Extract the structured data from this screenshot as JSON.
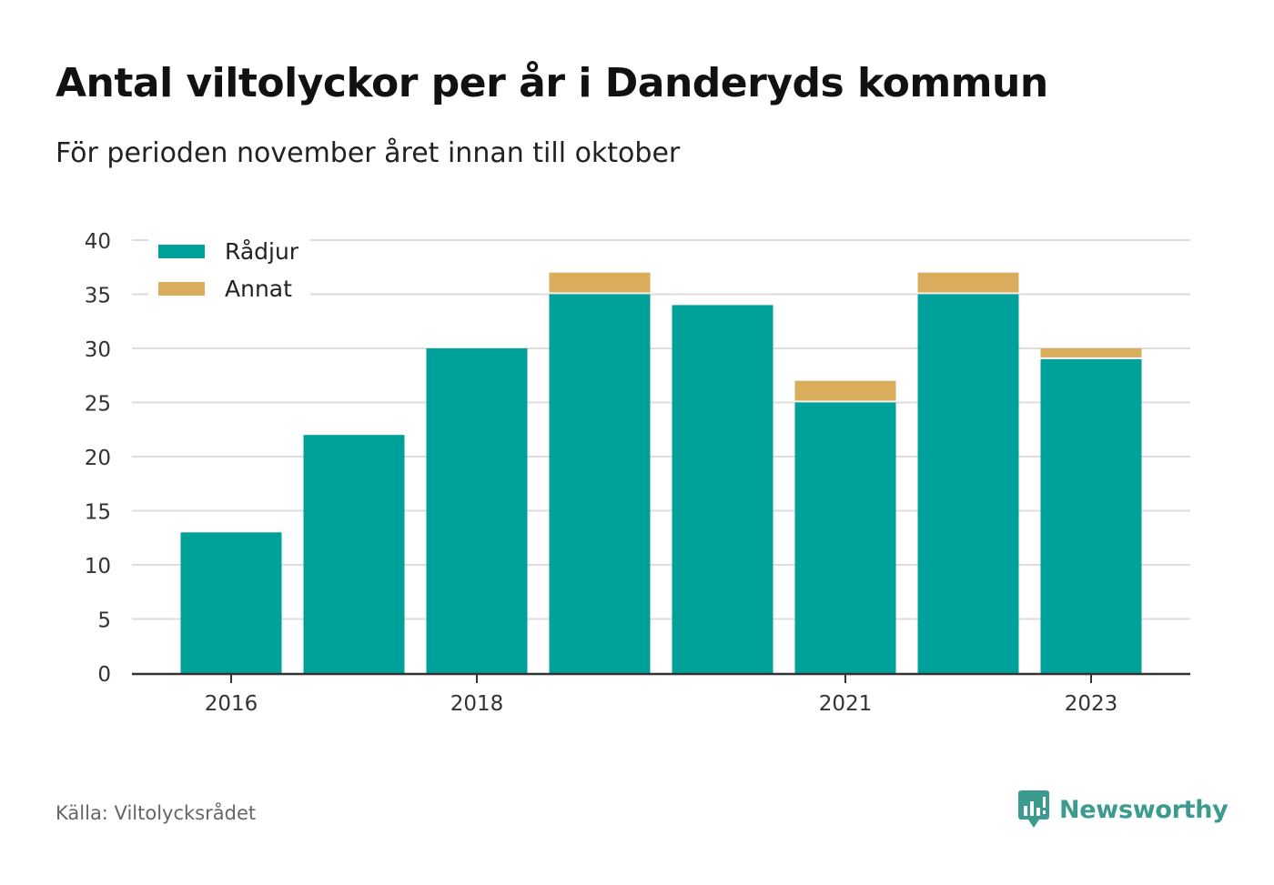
{
  "header": {
    "title": "Antal viltolyckor per år i Danderyds kommun",
    "subtitle": "För perioden november året innan till oktober"
  },
  "footer": {
    "source": "Källa: Viltolycksrådet",
    "brand": "Newsworthy"
  },
  "colors": {
    "radjur": "#00a19a",
    "annat": "#d9ad5c",
    "grid": "#dddddd",
    "axis": "#333333",
    "brand": "#3a9b8e"
  },
  "icons": {
    "brand_logo": "newsworthy-logo-icon"
  },
  "chart_data": {
    "type": "bar",
    "stacked": true,
    "categories": [
      "2016",
      "2017",
      "2018",
      "2019",
      "2020",
      "2021",
      "2022",
      "2023"
    ],
    "x_tick_labels": [
      "2016",
      "",
      "2018",
      "",
      "",
      "2021",
      "",
      "2023"
    ],
    "series": [
      {
        "name": "Rådjur",
        "values": [
          13,
          22,
          30,
          35,
          34,
          25,
          35,
          29
        ]
      },
      {
        "name": "Annat",
        "values": [
          0,
          0,
          0,
          2,
          0,
          2,
          2,
          1
        ]
      }
    ],
    "ylim": [
      0,
      40
    ],
    "yticks": [
      0,
      5,
      10,
      15,
      20,
      25,
      30,
      35,
      40
    ],
    "xlabel": "",
    "ylabel": "",
    "grid": true,
    "legend": "top-left"
  }
}
